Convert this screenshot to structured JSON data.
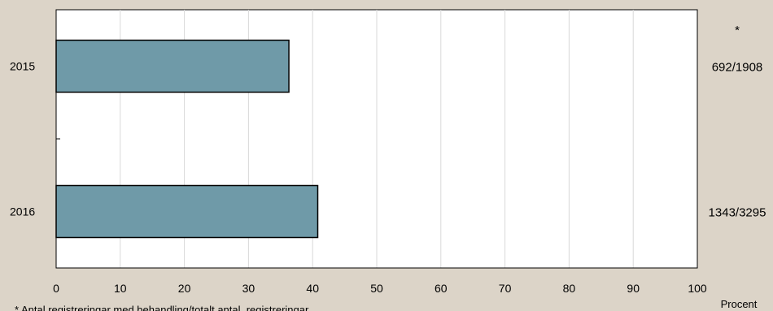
{
  "chart_data": {
    "type": "bar",
    "orientation": "horizontal",
    "categories": [
      "2015",
      "2016"
    ],
    "values": [
      36.3,
      40.8
    ],
    "ratio_labels": [
      "692/1908",
      "1343/3295"
    ],
    "ratio_header": "*",
    "xlim": [
      0,
      100
    ],
    "xticks": [
      0,
      10,
      20,
      30,
      40,
      50,
      60,
      70,
      80,
      90,
      100
    ],
    "xlabel": "Procent",
    "footnote": "* Antal registreringar med behandling/totalt antal  registreringar",
    "grid": true,
    "legend": "none",
    "colors": {
      "bar": "#6f9aa8",
      "plot_bg": "#ffffff",
      "page_bg": "#dcd4c8",
      "grid": "#d9d9d9"
    }
  }
}
